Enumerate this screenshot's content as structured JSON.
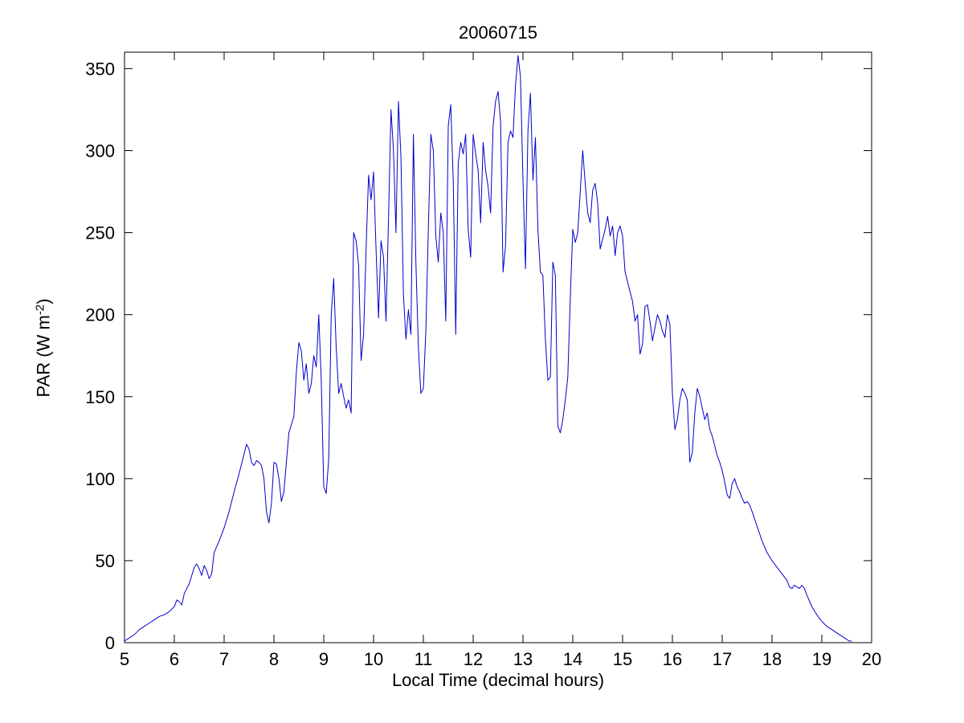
{
  "figure": {
    "background": "#ffffff",
    "axis_color": "#000000"
  },
  "chart_data": {
    "type": "line",
    "title": "20060715",
    "xlabel": "Local Time (decimal hours)",
    "ylabel": "PAR (W m^-2)",
    "ylabel_parts": {
      "pre": "PAR (W m",
      "sup": "-2",
      "post": ")"
    },
    "xlim": [
      5,
      20
    ],
    "ylim": [
      0,
      360
    ],
    "x_ticks": [
      5,
      6,
      7,
      8,
      9,
      10,
      11,
      12,
      13,
      14,
      15,
      16,
      17,
      18,
      19,
      20
    ],
    "y_ticks": [
      0,
      50,
      100,
      150,
      200,
      250,
      300,
      350
    ],
    "grid": false,
    "legend": null,
    "line_color": "#0000cc",
    "line_width": 1,
    "points": [
      [
        5.0,
        1
      ],
      [
        5.1,
        3
      ],
      [
        5.2,
        5
      ],
      [
        5.3,
        8
      ],
      [
        5.4,
        10
      ],
      [
        5.5,
        12
      ],
      [
        5.6,
        14
      ],
      [
        5.7,
        16
      ],
      [
        5.8,
        17
      ],
      [
        5.9,
        19
      ],
      [
        6.0,
        22
      ],
      [
        6.05,
        26
      ],
      [
        6.1,
        25
      ],
      [
        6.15,
        23
      ],
      [
        6.2,
        30
      ],
      [
        6.3,
        36
      ],
      [
        6.4,
        46
      ],
      [
        6.45,
        48
      ],
      [
        6.5,
        45
      ],
      [
        6.55,
        41
      ],
      [
        6.6,
        47
      ],
      [
        6.65,
        44
      ],
      [
        6.7,
        39
      ],
      [
        6.75,
        42
      ],
      [
        6.8,
        55
      ],
      [
        6.9,
        62
      ],
      [
        7.0,
        70
      ],
      [
        7.1,
        80
      ],
      [
        7.2,
        92
      ],
      [
        7.3,
        103
      ],
      [
        7.4,
        115
      ],
      [
        7.45,
        121
      ],
      [
        7.5,
        118
      ],
      [
        7.55,
        110
      ],
      [
        7.6,
        108
      ],
      [
        7.65,
        111
      ],
      [
        7.7,
        110
      ],
      [
        7.75,
        108
      ],
      [
        7.8,
        100
      ],
      [
        7.85,
        80
      ],
      [
        7.9,
        73
      ],
      [
        7.95,
        85
      ],
      [
        8.0,
        110
      ],
      [
        8.05,
        109
      ],
      [
        8.1,
        100
      ],
      [
        8.15,
        86
      ],
      [
        8.2,
        92
      ],
      [
        8.25,
        110
      ],
      [
        8.3,
        128
      ],
      [
        8.35,
        133
      ],
      [
        8.4,
        138
      ],
      [
        8.45,
        165
      ],
      [
        8.5,
        183
      ],
      [
        8.55,
        178
      ],
      [
        8.6,
        160
      ],
      [
        8.65,
        170
      ],
      [
        8.7,
        152
      ],
      [
        8.75,
        158
      ],
      [
        8.8,
        175
      ],
      [
        8.85,
        168
      ],
      [
        8.9,
        200
      ],
      [
        8.95,
        160
      ],
      [
        9.0,
        95
      ],
      [
        9.05,
        91
      ],
      [
        9.1,
        112
      ],
      [
        9.15,
        200
      ],
      [
        9.2,
        222
      ],
      [
        9.25,
        180
      ],
      [
        9.3,
        152
      ],
      [
        9.35,
        158
      ],
      [
        9.4,
        150
      ],
      [
        9.45,
        143
      ],
      [
        9.5,
        148
      ],
      [
        9.55,
        140
      ],
      [
        9.6,
        250
      ],
      [
        9.65,
        245
      ],
      [
        9.7,
        230
      ],
      [
        9.75,
        172
      ],
      [
        9.8,
        188
      ],
      [
        9.85,
        240
      ],
      [
        9.9,
        285
      ],
      [
        9.95,
        270
      ],
      [
        10.0,
        287
      ],
      [
        10.05,
        240
      ],
      [
        10.1,
        198
      ],
      [
        10.15,
        245
      ],
      [
        10.2,
        235
      ],
      [
        10.25,
        196
      ],
      [
        10.3,
        258
      ],
      [
        10.35,
        325
      ],
      [
        10.4,
        300
      ],
      [
        10.45,
        250
      ],
      [
        10.5,
        330
      ],
      [
        10.55,
        296
      ],
      [
        10.6,
        212
      ],
      [
        10.65,
        185
      ],
      [
        10.7,
        203
      ],
      [
        10.75,
        188
      ],
      [
        10.8,
        310
      ],
      [
        10.85,
        232
      ],
      [
        10.9,
        180
      ],
      [
        10.95,
        152
      ],
      [
        11.0,
        155
      ],
      [
        11.05,
        190
      ],
      [
        11.1,
        252
      ],
      [
        11.15,
        310
      ],
      [
        11.2,
        300
      ],
      [
        11.25,
        248
      ],
      [
        11.3,
        232
      ],
      [
        11.35,
        262
      ],
      [
        11.4,
        250
      ],
      [
        11.45,
        196
      ],
      [
        11.5,
        315
      ],
      [
        11.55,
        328
      ],
      [
        11.6,
        282
      ],
      [
        11.65,
        188
      ],
      [
        11.7,
        292
      ],
      [
        11.75,
        305
      ],
      [
        11.8,
        298
      ],
      [
        11.85,
        310
      ],
      [
        11.9,
        252
      ],
      [
        11.95,
        235
      ],
      [
        12.0,
        310
      ],
      [
        12.05,
        298
      ],
      [
        12.1,
        288
      ],
      [
        12.15,
        256
      ],
      [
        12.2,
        305
      ],
      [
        12.25,
        288
      ],
      [
        12.3,
        278
      ],
      [
        12.35,
        262
      ],
      [
        12.4,
        315
      ],
      [
        12.45,
        330
      ],
      [
        12.5,
        336
      ],
      [
        12.55,
        318
      ],
      [
        12.6,
        226
      ],
      [
        12.65,
        242
      ],
      [
        12.7,
        305
      ],
      [
        12.75,
        312
      ],
      [
        12.8,
        308
      ],
      [
        12.85,
        340
      ],
      [
        12.9,
        358
      ],
      [
        12.95,
        345
      ],
      [
        13.0,
        282
      ],
      [
        13.05,
        228
      ],
      [
        13.1,
        312
      ],
      [
        13.15,
        335
      ],
      [
        13.2,
        282
      ],
      [
        13.25,
        308
      ],
      [
        13.3,
        252
      ],
      [
        13.35,
        226
      ],
      [
        13.4,
        224
      ],
      [
        13.45,
        185
      ],
      [
        13.5,
        160
      ],
      [
        13.55,
        162
      ],
      [
        13.6,
        232
      ],
      [
        13.65,
        224
      ],
      [
        13.7,
        132
      ],
      [
        13.75,
        128
      ],
      [
        13.8,
        136
      ],
      [
        13.85,
        148
      ],
      [
        13.9,
        162
      ],
      [
        13.95,
        210
      ],
      [
        14.0,
        252
      ],
      [
        14.05,
        244
      ],
      [
        14.1,
        250
      ],
      [
        14.15,
        275
      ],
      [
        14.2,
        300
      ],
      [
        14.25,
        280
      ],
      [
        14.3,
        262
      ],
      [
        14.35,
        256
      ],
      [
        14.4,
        276
      ],
      [
        14.45,
        280
      ],
      [
        14.5,
        268
      ],
      [
        14.55,
        240
      ],
      [
        14.6,
        246
      ],
      [
        14.65,
        252
      ],
      [
        14.7,
        260
      ],
      [
        14.75,
        248
      ],
      [
        14.8,
        254
      ],
      [
        14.85,
        236
      ],
      [
        14.9,
        250
      ],
      [
        14.95,
        254
      ],
      [
        15.0,
        248
      ],
      [
        15.05,
        226
      ],
      [
        15.1,
        220
      ],
      [
        15.15,
        214
      ],
      [
        15.2,
        208
      ],
      [
        15.25,
        196
      ],
      [
        15.3,
        200
      ],
      [
        15.35,
        176
      ],
      [
        15.4,
        182
      ],
      [
        15.45,
        205
      ],
      [
        15.5,
        206
      ],
      [
        15.55,
        196
      ],
      [
        15.6,
        184
      ],
      [
        15.65,
        192
      ],
      [
        15.7,
        200
      ],
      [
        15.75,
        196
      ],
      [
        15.8,
        190
      ],
      [
        15.85,
        186
      ],
      [
        15.9,
        200
      ],
      [
        15.95,
        194
      ],
      [
        16.0,
        152
      ],
      [
        16.05,
        130
      ],
      [
        16.1,
        136
      ],
      [
        16.15,
        148
      ],
      [
        16.2,
        155
      ],
      [
        16.25,
        152
      ],
      [
        16.3,
        148
      ],
      [
        16.35,
        110
      ],
      [
        16.4,
        116
      ],
      [
        16.45,
        140
      ],
      [
        16.5,
        155
      ],
      [
        16.55,
        150
      ],
      [
        16.6,
        143
      ],
      [
        16.65,
        136
      ],
      [
        16.7,
        140
      ],
      [
        16.75,
        130
      ],
      [
        16.8,
        126
      ],
      [
        16.85,
        120
      ],
      [
        16.9,
        114
      ],
      [
        16.95,
        110
      ],
      [
        17.0,
        105
      ],
      [
        17.05,
        98
      ],
      [
        17.1,
        90
      ],
      [
        17.15,
        88
      ],
      [
        17.2,
        97
      ],
      [
        17.25,
        100
      ],
      [
        17.3,
        95
      ],
      [
        17.35,
        92
      ],
      [
        17.4,
        88
      ],
      [
        17.45,
        85
      ],
      [
        17.5,
        86
      ],
      [
        17.55,
        84
      ],
      [
        17.6,
        80
      ],
      [
        17.7,
        71
      ],
      [
        17.8,
        62
      ],
      [
        17.9,
        55
      ],
      [
        18.0,
        50
      ],
      [
        18.1,
        46
      ],
      [
        18.2,
        42
      ],
      [
        18.3,
        38
      ],
      [
        18.35,
        34
      ],
      [
        18.4,
        33
      ],
      [
        18.45,
        35
      ],
      [
        18.5,
        34
      ],
      [
        18.55,
        33
      ],
      [
        18.6,
        35
      ],
      [
        18.65,
        33
      ],
      [
        18.7,
        29
      ],
      [
        18.8,
        22
      ],
      [
        18.9,
        17
      ],
      [
        19.0,
        13
      ],
      [
        19.1,
        10
      ],
      [
        19.2,
        8
      ],
      [
        19.3,
        6
      ],
      [
        19.4,
        4
      ],
      [
        19.5,
        2
      ],
      [
        19.55,
        1
      ],
      [
        19.6,
        1
      ]
    ]
  }
}
